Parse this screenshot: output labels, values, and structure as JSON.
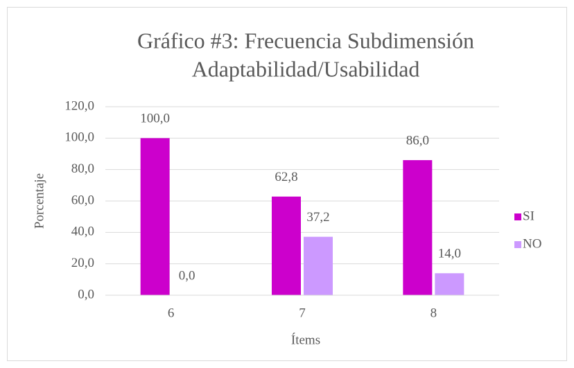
{
  "chart_data": {
    "type": "bar",
    "title": [
      "Gráfico #3: Frecuencia Subdimensión",
      "Adaptabilidad/Usabilidad"
    ],
    "x_label": "Ítems",
    "y_label": "Porcentaje",
    "categories": [
      "6",
      "7",
      "8"
    ],
    "series": [
      {
        "name": "SI",
        "color": "#cc00cc",
        "values": [
          100,
          62.8,
          86
        ],
        "value_labels": [
          "100,0",
          "62,8",
          "86,0"
        ]
      },
      {
        "name": "NO",
        "color": "#cc99ff",
        "values": [
          0,
          37.2,
          14
        ],
        "value_labels": [
          "0,0",
          "37,2",
          "14,0"
        ]
      }
    ],
    "ylim": [
      0,
      120
    ],
    "yticks": [
      {
        "value": 0,
        "label": "0,0"
      },
      {
        "value": 20,
        "label": "20,0"
      },
      {
        "value": 40,
        "label": "40,0"
      },
      {
        "value": 60,
        "label": "60,0"
      },
      {
        "value": 80,
        "label": "80,0"
      },
      {
        "value": 100,
        "label": "100,0"
      },
      {
        "value": 120,
        "label": "120,0"
      }
    ],
    "grid": true,
    "legend": "right"
  }
}
